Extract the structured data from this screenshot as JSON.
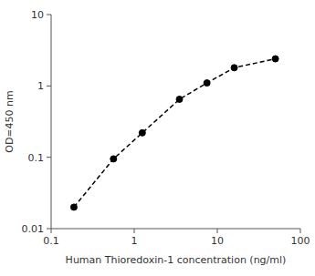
{
  "chart_data": {
    "type": "line",
    "x": [
      0.188,
      0.563,
      1.25,
      3.5,
      7.5,
      16,
      50
    ],
    "values": [
      0.02,
      0.095,
      0.22,
      0.65,
      1.1,
      1.8,
      2.4
    ],
    "xlabel": "Human Thioredoxin-1 concentration (ng/ml)",
    "ylabel": "OD=450 nm",
    "xlim": [
      0.1,
      100
    ],
    "ylim": [
      0.01,
      10
    ],
    "xticks": [
      0.1,
      1,
      10,
      100
    ],
    "yticks": [
      0.01,
      0.1,
      1,
      10
    ],
    "log": true,
    "grid": false,
    "color": "#000000",
    "line_style": "dashed",
    "marker": "circle"
  }
}
